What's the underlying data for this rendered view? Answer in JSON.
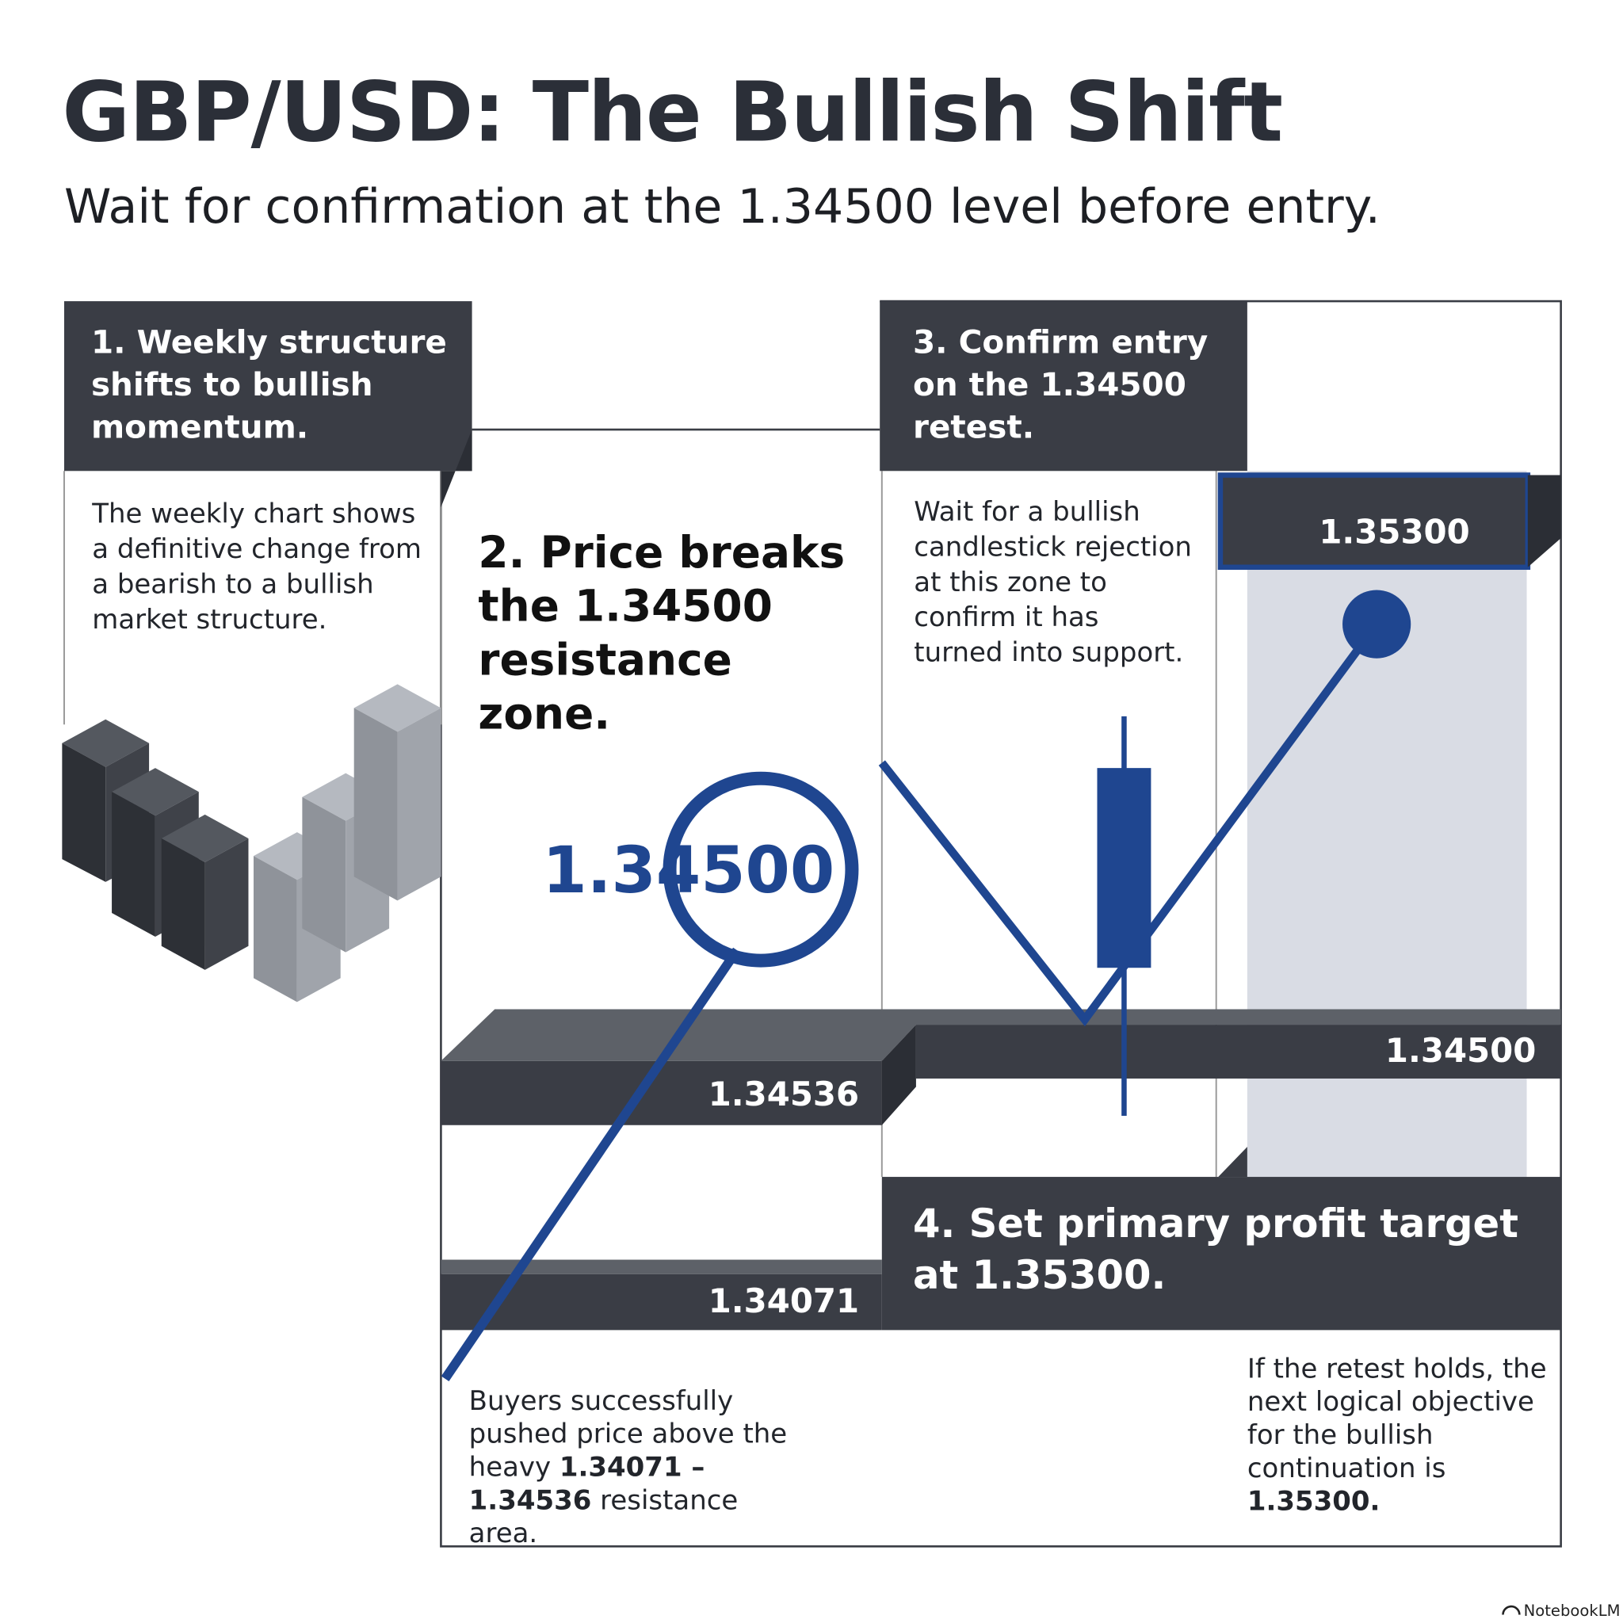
{
  "header": {
    "title": "GBP/USD: The Bullish Shift",
    "subtitle": "Wait for confirmation at the 1.34500 level before entry."
  },
  "steps": [
    {
      "heading": "1. Weekly structure shifts to bullish momentum.",
      "body": [
        "The weekly chart shows a definitive change from a bearish to a bullish market structure."
      ]
    },
    {
      "heading": "2. Price breaks the 1.34500 resistance zone.",
      "body": [
        "Buyers successfully pushed price above the heavy ",
        "1.34071 – 1.34536",
        " resistance area."
      ]
    },
    {
      "heading": "3. Confirm entry on the 1.34500 retest.",
      "body": [
        "Wait for a bullish candlestick rejection at this zone to confirm it has turned into support."
      ]
    },
    {
      "heading": "4. Set primary profit target at 1.35300.",
      "body": [
        "If the retest holds, the next logical objective for the bullish continuation is ",
        "1.35300."
      ]
    }
  ],
  "levels": {
    "breakout": "1.34500",
    "resistance_high": "1.34536",
    "resistance_low": "1.34071",
    "retest": "1.34500",
    "target": "1.35300"
  },
  "footer": {
    "brand": "NotebookLM"
  }
}
